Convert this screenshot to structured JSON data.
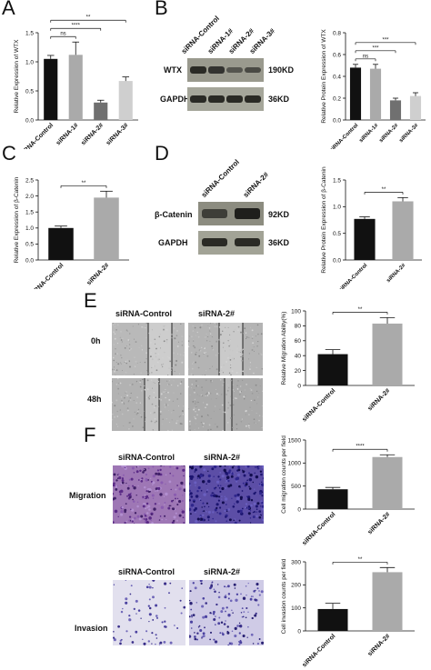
{
  "panels": {
    "A": "A",
    "B": "B",
    "C": "C",
    "D": "D",
    "E": "E",
    "F": "F"
  },
  "blots": {
    "B": {
      "columns": [
        "siRNA-Control",
        "siRNA-1#",
        "siRNA-2#",
        "siRNA-3#"
      ],
      "rows": [
        {
          "name": "WTX",
          "size": "190KD"
        },
        {
          "name": "GAPDH",
          "size": "36KD"
        }
      ]
    },
    "D": {
      "columns": [
        "siRNA-Control",
        "siRNA-2#"
      ],
      "rows": [
        {
          "name": "β-Catenin",
          "size": "92KD"
        },
        {
          "name": "GAPDH",
          "size": "36KD"
        }
      ]
    }
  },
  "micro": {
    "E": {
      "columns": [
        "siRNA-Control",
        "siRNA-2#"
      ],
      "rows": [
        "0h",
        "48h"
      ]
    },
    "F_mig": {
      "columns": [
        "siRNA-Control",
        "siRNA-2#"
      ],
      "row": "Migration"
    },
    "F_inv": {
      "columns": [
        "siRNA-Control",
        "siRNA-2#"
      ],
      "row": "Invasion"
    }
  },
  "chart_data": [
    {
      "id": "A",
      "type": "bar",
      "categories": [
        "siRNA-Control",
        "siRNA-1#",
        "siRNA-2#",
        "siRNA-3#"
      ],
      "values": [
        1.05,
        1.12,
        0.3,
        0.67
      ],
      "errors": [
        0.06,
        0.22,
        0.04,
        0.07
      ],
      "colors": [
        "#111111",
        "#aaaaaa",
        "#707070",
        "#cfcfcf"
      ],
      "ylabel": "Relative Expression of WTX",
      "ylim": [
        0,
        1.5
      ],
      "ticks": [
        "0.0",
        "0.5",
        "1.0",
        "1.5"
      ],
      "tickvals": [
        0,
        0.5,
        1.0,
        1.5
      ],
      "sig": [
        {
          "from": 0,
          "to": 3,
          "label": "**"
        },
        {
          "from": 0,
          "to": 2,
          "label": "****"
        },
        {
          "from": 0,
          "to": 1,
          "label": "ns"
        }
      ]
    },
    {
      "id": "B",
      "type": "bar",
      "categories": [
        "siRNA-Control",
        "siRNA-1#",
        "siRNA-2#",
        "siRNA-3#"
      ],
      "values": [
        0.48,
        0.47,
        0.18,
        0.22
      ],
      "errors": [
        0.03,
        0.04,
        0.02,
        0.03
      ],
      "colors": [
        "#111111",
        "#aaaaaa",
        "#707070",
        "#cfcfcf"
      ],
      "ylabel": "Relative Protein Expression of WTX",
      "ylim": [
        0,
        0.8
      ],
      "ticks": [
        "0.0",
        "0.2",
        "0.4",
        "0.6",
        "0.8"
      ],
      "tickvals": [
        0,
        0.2,
        0.4,
        0.6,
        0.8
      ],
      "sig": [
        {
          "from": 0,
          "to": 3,
          "label": "***"
        },
        {
          "from": 0,
          "to": 2,
          "label": "***"
        },
        {
          "from": 0,
          "to": 1,
          "label": "ns"
        }
      ]
    },
    {
      "id": "C",
      "type": "bar",
      "categories": [
        "siRNA-Control",
        "siRNA-2#"
      ],
      "values": [
        1.0,
        1.95
      ],
      "errors": [
        0.06,
        0.2
      ],
      "colors": [
        "#111111",
        "#aaaaaa"
      ],
      "ylabel": "Relative Expression of β-Catenin",
      "ylim": [
        0,
        2.5
      ],
      "ticks": [
        "0.0",
        "0.5",
        "1.0",
        "1.5",
        "2.0",
        "2.5"
      ],
      "tickvals": [
        0,
        0.5,
        1.0,
        1.5,
        2.0,
        2.5
      ],
      "sig": [
        {
          "from": 0,
          "to": 1,
          "label": "**"
        }
      ]
    },
    {
      "id": "D",
      "type": "bar",
      "categories": [
        "siRNA-Control",
        "siRNA-2#"
      ],
      "values": [
        0.77,
        1.1
      ],
      "errors": [
        0.04,
        0.07
      ],
      "colors": [
        "#111111",
        "#aaaaaa"
      ],
      "ylabel": "Relative Protein Expression of β-Catenin",
      "ylim": [
        0,
        1.5
      ],
      "ticks": [
        "0.0",
        "0.5",
        "1.0",
        "1.5"
      ],
      "tickvals": [
        0,
        0.5,
        1.0,
        1.5
      ],
      "sig": [
        {
          "from": 0,
          "to": 1,
          "label": "**"
        }
      ]
    },
    {
      "id": "E",
      "type": "bar",
      "categories": [
        "siRNA-Control",
        "siRNA-2#"
      ],
      "values": [
        42,
        83
      ],
      "errors": [
        6,
        8
      ],
      "colors": [
        "#111111",
        "#aaaaaa"
      ],
      "ylabel": "Relative Migration Ability(%)",
      "ylim": [
        0,
        100
      ],
      "ticks": [
        "0",
        "20",
        "40",
        "60",
        "80",
        "100"
      ],
      "tickvals": [
        0,
        20,
        40,
        60,
        80,
        100
      ],
      "sig": [
        {
          "from": 0,
          "to": 1,
          "label": "**"
        }
      ]
    },
    {
      "id": "F1",
      "type": "bar",
      "categories": [
        "siRNA-Control",
        "siRNA-2#"
      ],
      "values": [
        430,
        1130
      ],
      "errors": [
        40,
        50
      ],
      "colors": [
        "#111111",
        "#aaaaaa"
      ],
      "ylabel": "Cell migration counts per field",
      "ylim": [
        0,
        1500
      ],
      "ticks": [
        "0",
        "500",
        "1000",
        "1500"
      ],
      "tickvals": [
        0,
        500,
        1000,
        1500
      ],
      "sig": [
        {
          "from": 0,
          "to": 1,
          "label": "****"
        }
      ]
    },
    {
      "id": "F2",
      "type": "bar",
      "categories": [
        "siRNA-Control",
        "siRNA-2#"
      ],
      "values": [
        95,
        255
      ],
      "errors": [
        25,
        20
      ],
      "colors": [
        "#111111",
        "#aaaaaa"
      ],
      "ylabel": "Cell invasion counts per field",
      "ylim": [
        0,
        300
      ],
      "ticks": [
        "0",
        "100",
        "200",
        "300"
      ],
      "tickvals": [
        0,
        100,
        200,
        300
      ],
      "sig": [
        {
          "from": 0,
          "to": 1,
          "label": "**"
        }
      ]
    }
  ]
}
